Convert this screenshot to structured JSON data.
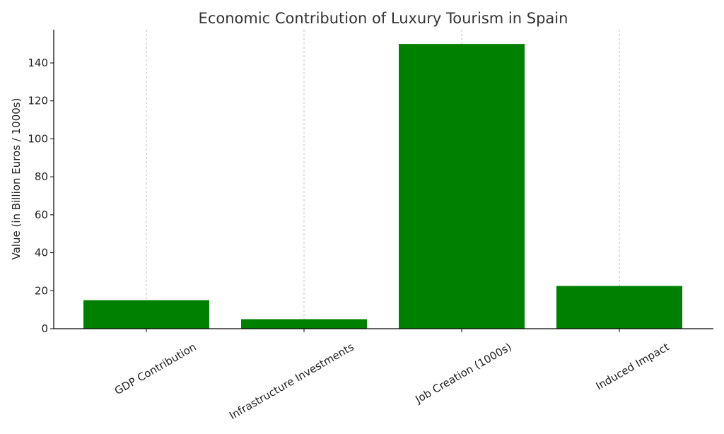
{
  "chart_data": {
    "type": "bar",
    "title": "Economic Contribution of Luxury Tourism in Spain",
    "xlabel": "",
    "ylabel": "Value (in Billion Euros / 1000s)",
    "categories": [
      "GDP Contribution",
      "Infrastructure Investments",
      "Job Creation (1000s)",
      "Induced Impact"
    ],
    "values": [
      15,
      5,
      150,
      22.5
    ],
    "ylim": [
      0,
      157.5
    ],
    "yticks": [
      0,
      20,
      40,
      60,
      80,
      100,
      120,
      140
    ],
    "bar_color": "#008000",
    "grid": "vertical dashed lines at categories",
    "legend": "none"
  }
}
